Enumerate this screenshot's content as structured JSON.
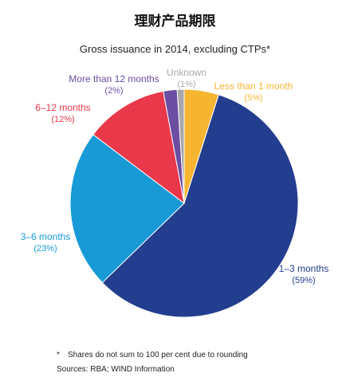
{
  "title": "理财产品期限",
  "subtitle": "Gross issuance in 2014, excluding CTPs*",
  "footnote": {
    "marker": "*",
    "text": "Shares do not sum to 100 per cent due to rounding"
  },
  "sources": "Sources:  RBA; WIND Information",
  "chart_data": {
    "type": "pie",
    "title": "理财产品期限",
    "subtitle": "Gross issuance in 2014, excluding CTPs*",
    "slices": [
      {
        "name": "Less than 1 month",
        "value": 5,
        "pct_label": "(5%)",
        "color": "#f6b530"
      },
      {
        "name": "1–3 months",
        "value": 59,
        "pct_label": "(59%)",
        "color": "#233e8f"
      },
      {
        "name": "3–6 months",
        "value": 23,
        "pct_label": "(23%)",
        "color": "#189ad6"
      },
      {
        "name": "6–12 months",
        "value": 12,
        "pct_label": "(12%)",
        "color": "#e8384a"
      },
      {
        "name": "More than 12 months",
        "value": 2,
        "pct_label": "(2%)",
        "color": "#6b4ea2"
      },
      {
        "name": "Unknown",
        "value": 1,
        "pct_label": "(1%)",
        "color": "#a8a8ac"
      }
    ]
  }
}
